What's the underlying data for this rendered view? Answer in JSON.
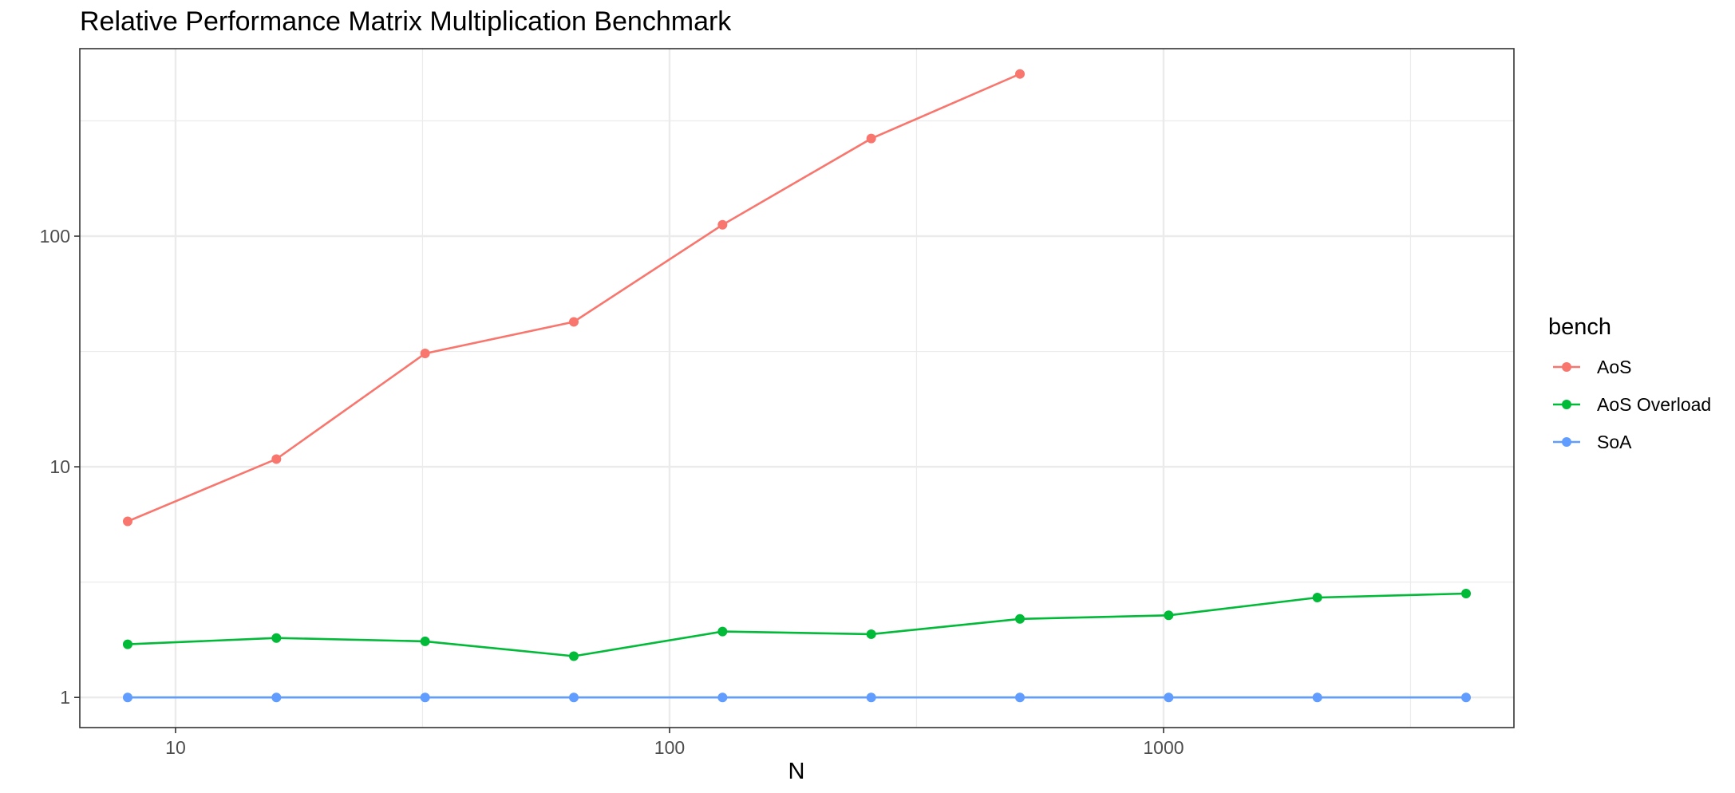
{
  "chart_data": {
    "type": "line",
    "title": "Relative Performance Matrix Multiplication Benchmark",
    "xlabel": "N",
    "ylabel": "",
    "x_scale": "log",
    "y_scale": "log",
    "xlim": [
      6.4,
      5120
    ],
    "ylim": [
      0.74,
      650
    ],
    "x_ticks": [
      10,
      100,
      1000
    ],
    "x_tick_labels": [
      "10",
      "100",
      "1000"
    ],
    "x_minor_ticks": [
      31.62,
      316.2,
      3162
    ],
    "y_ticks": [
      1,
      10,
      100
    ],
    "y_tick_labels": [
      "1",
      "10",
      "100"
    ],
    "y_minor_ticks": [
      3.162,
      31.62,
      316.2
    ],
    "grid": true,
    "legend": {
      "title": "bench",
      "position": "right"
    },
    "series": [
      {
        "name": "AoS",
        "color": "#F8766D",
        "x": [
          8,
          16,
          32,
          64,
          128,
          256,
          512
        ],
        "y": [
          5.8,
          10.8,
          31,
          42.5,
          112,
          265,
          505
        ]
      },
      {
        "name": "AoS Overload",
        "color": "#00BA38",
        "x": [
          8,
          16,
          32,
          64,
          128,
          256,
          512,
          1024,
          2048,
          4096
        ],
        "y": [
          1.7,
          1.81,
          1.75,
          1.51,
          1.93,
          1.88,
          2.19,
          2.27,
          2.71,
          2.82
        ]
      },
      {
        "name": "SoA",
        "color": "#619CFF",
        "x": [
          8,
          16,
          32,
          64,
          128,
          256,
          512,
          1024,
          2048,
          4096
        ],
        "y": [
          1,
          1,
          1,
          1,
          1,
          1,
          1,
          1,
          1,
          1
        ]
      }
    ]
  }
}
